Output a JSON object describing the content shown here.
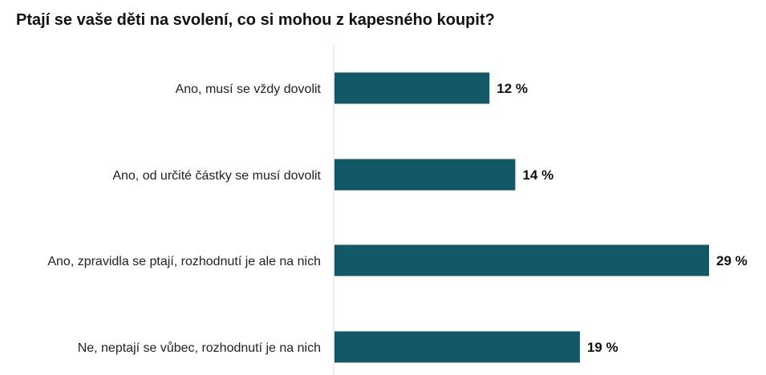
{
  "chart_data": {
    "type": "bar",
    "orientation": "horizontal",
    "title": "Ptají se vaše děti na svolení, co si mohou z kapesného koupit?",
    "categories": [
      "Ano, musí se vždy dovolit",
      "Ano, od určité částky se musí dovolit",
      "Ano, zpravidla se ptají, rozhodnutí je ale na nich",
      "Ne, neptají se vůbec, rozhodnutí je na nich"
    ],
    "values": [
      12,
      14,
      29,
      19
    ],
    "value_labels": [
      "12 %",
      "14 %",
      "29 %",
      "19 %"
    ],
    "xlim": [
      0,
      29
    ],
    "grid": false,
    "legend": "none",
    "colors": {
      "bar": "#135866",
      "axis": "#d9d9d9"
    }
  }
}
